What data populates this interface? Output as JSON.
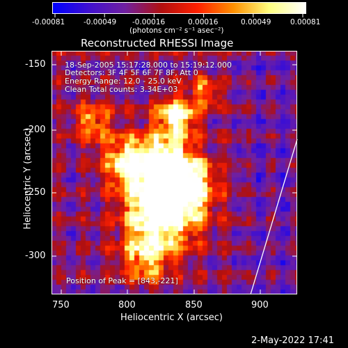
{
  "colorbar": {
    "tick_labels": [
      "-0.00081",
      "-0.00049",
      "-0.00016",
      "0.00016",
      "0.00049",
      "0.00081"
    ],
    "unit_label": "(photons cm⁻² s⁻¹ asec⁻²)"
  },
  "title": "Reconstructed RHESSI Image",
  "annotations": {
    "time_range": "18-Sep-2005 15:17:28.000 to 15:19:12.000",
    "detectors": "Detectors: 3F 4F 5F 6F 7F 8F, Att 0",
    "energy": "Energy Range: 12.0 - 25.0 keV",
    "clean": "Clean     Total counts: 3.34E+03",
    "peak": "Position of Peak = [843,-221]"
  },
  "axes": {
    "xlabel": "Heliocentric X (arcsec)",
    "ylabel": "Heliocentric Y (arcsec)",
    "xticks": [
      "750",
      "800",
      "850",
      "900"
    ],
    "yticks": [
      "-150",
      "-200",
      "-250",
      "-300"
    ]
  },
  "footer": "2-May-2022 17:41",
  "colors": {
    "scale": [
      "#0000ff",
      "#4010d0",
      "#7020a0",
      "#b01010",
      "#ff2000",
      "#ff9000",
      "#ffff80",
      "#ffffff"
    ]
  }
}
